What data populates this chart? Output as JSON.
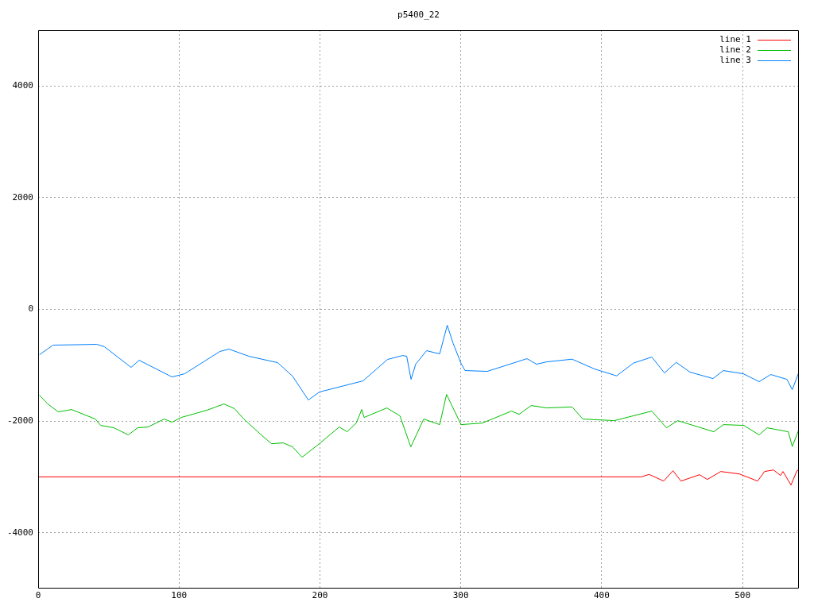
{
  "chart_data": {
    "type": "line",
    "title": "p5400_22",
    "xlim": [
      0,
      540
    ],
    "xticks": [
      0,
      100,
      200,
      300,
      400,
      500
    ],
    "ylim": [
      -5000,
      5000
    ],
    "yticks": [
      -4000,
      -2000,
      0,
      2000,
      4000
    ],
    "grid": true,
    "legend": "top right",
    "marker": "none",
    "line_style": "solid",
    "series": [
      {
        "name": "line 1",
        "color": "#ff0000",
        "x": [
          0,
          428,
          433.7,
          444,
          450.6,
          456.3,
          469.5,
          475,
          484.5,
          497.7,
          510.7,
          515.6,
          522,
          526.9,
          528.7,
          534.4,
          538.6,
          540
        ],
        "values": [
          -3000,
          -3000,
          -2956,
          -3075,
          -2890,
          -3075,
          -2961,
          -3046,
          -2904,
          -2947,
          -3075,
          -2904,
          -2876,
          -2975,
          -2904,
          -3146,
          -2890,
          -2876
        ]
      },
      {
        "name": "line 2",
        "color": "#00c000",
        "x": [
          1,
          6.8,
          14.3,
          23.7,
          40.6,
          44.4,
          53.8,
          64,
          70.6,
          78,
          89.5,
          95,
          101.5,
          119.6,
          131.9,
          139.4,
          146,
          159,
          165.7,
          174,
          180.6,
          187.3,
          199.6,
          213.7,
          219.3,
          225.8,
          229.7,
          231.4,
          247.5,
          256.8,
          264.5,
          273.7,
          285,
          289.9,
          300.2,
          315.3,
          336,
          341.4,
          350,
          361,
          379,
          386.6,
          409,
          435.6,
          446,
          454,
          479.6,
          486.4,
          501,
          511.8,
          517.4,
          532.5,
          535.3,
          540
        ],
        "values": [
          -1537,
          -1694,
          -1836,
          -1794,
          -1964,
          -2078,
          -2121,
          -2249,
          -2121,
          -2107,
          -1964,
          -2021,
          -1936,
          -1808,
          -1694,
          -1779,
          -1964,
          -2263,
          -2406,
          -2391,
          -2463,
          -2648,
          -2406,
          -2107,
          -2192,
          -2036,
          -1794,
          -1936,
          -1765,
          -1907,
          -2463,
          -1964,
          -2064,
          -1523,
          -2064,
          -2036,
          -1822,
          -1879,
          -1722,
          -1765,
          -1747,
          -1964,
          -1993,
          -1822,
          -2121,
          -1993,
          -2192,
          -2064,
          -2078,
          -2249,
          -2121,
          -2192,
          -2457,
          -2150
        ]
      },
      {
        "name": "line 3",
        "color": "#0080ff",
        "x": [
          1,
          10.5,
          41.6,
          47,
          66,
          71.7,
          95,
          104,
          129,
          135.5,
          149.6,
          170,
          180.6,
          191.8,
          199.6,
          230.6,
          248,
          258.8,
          261.6,
          264.7,
          268,
          275.7,
          285,
          290.4,
          294.6,
          300.2,
          303,
          318.8,
          347,
          353.8,
          361,
          379,
          395,
          410.6,
          422.5,
          435.6,
          444.6,
          452.9,
          462.7,
          479,
          486.4,
          500.5,
          511.8,
          520,
          531.5,
          535.3,
          540
        ],
        "values": [
          -811,
          -641,
          -626,
          -669,
          -1039,
          -911,
          -1210,
          -1153,
          -754,
          -712,
          -840,
          -954,
          -1196,
          -1623,
          -1480,
          -1281,
          -897,
          -826,
          -840,
          -1253,
          -982,
          -740,
          -797,
          -285,
          -612,
          -968,
          -1096,
          -1110,
          -883,
          -982,
          -940,
          -892,
          -1068,
          -1191,
          -963,
          -854,
          -1139,
          -949,
          -1124,
          -1239,
          -1096,
          -1153,
          -1295,
          -1167,
          -1253,
          -1438,
          -1124
        ]
      }
    ]
  }
}
